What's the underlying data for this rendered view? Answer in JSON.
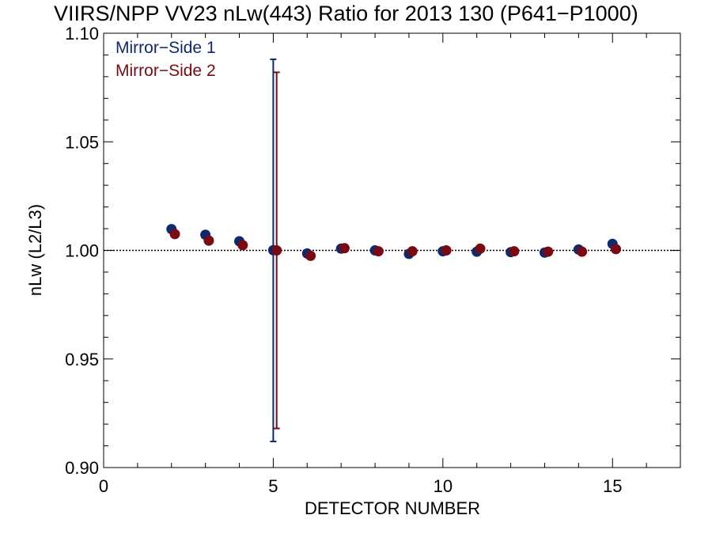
{
  "chart_data": {
    "type": "scatter",
    "title": "VIIRS/NPP VV23 nLw(443) Ratio for 2013 130 (P641−P1000)",
    "xlabel": "DETECTOR NUMBER",
    "ylabel": "nLw (L2/L3)",
    "xlim": [
      0,
      17
    ],
    "ylim": [
      0.9,
      1.1
    ],
    "xticks": [
      0,
      5,
      10,
      15
    ],
    "xtick_labels": [
      "0",
      "5",
      "10",
      "15"
    ],
    "yticks": [
      0.9,
      0.95,
      1.0,
      1.05,
      1.1
    ],
    "ytick_labels": [
      "0.90",
      "0.95",
      "1.00",
      "1.05",
      "1.10"
    ],
    "reference_line": 1.0,
    "grid": false,
    "legend_position": "top-left",
    "series": [
      {
        "name": "Mirror−Side 1",
        "color": "#0d2a6e",
        "x": [
          2,
          3,
          4,
          5,
          6,
          7,
          8,
          9,
          10,
          11,
          12,
          13,
          14,
          15
        ],
        "y": [
          1.0098,
          1.0072,
          1.0042,
          1.0001,
          0.9986,
          1.0008,
          1.0,
          0.9984,
          0.9996,
          0.9994,
          0.9992,
          0.999,
          1.0004,
          1.003
        ],
        "error_bar": {
          "x": 5,
          "low": 0.912,
          "high": 1.088
        }
      },
      {
        "name": "Mirror−Side 2",
        "color": "#7a0a12",
        "x": [
          2.1,
          3.1,
          4.1,
          5.1,
          6.1,
          7.1,
          8.1,
          9.1,
          10.1,
          11.1,
          12.1,
          13.1,
          14.1,
          15.1
        ],
        "y": [
          1.0075,
          1.0045,
          1.0024,
          1.0,
          0.9975,
          1.001,
          0.9996,
          0.9996,
          1.0,
          1.0008,
          0.9996,
          0.9994,
          0.9994,
          1.0006
        ],
        "error_bar": {
          "x": 5.1,
          "low": 0.918,
          "high": 1.082
        }
      }
    ]
  }
}
